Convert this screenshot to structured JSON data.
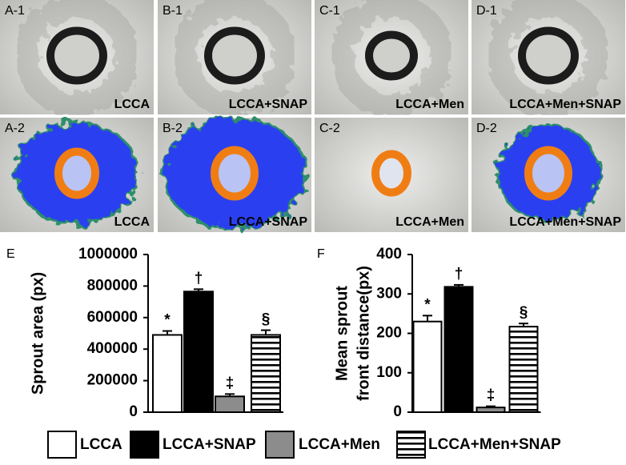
{
  "panels": [
    {
      "id": "A-1",
      "label": "LCCA"
    },
    {
      "id": "B-1",
      "label": "LCCA+SNAP"
    },
    {
      "id": "C-1",
      "label": "LCCA+Men"
    },
    {
      "id": "D-1",
      "label": "LCCA+Men+SNAP"
    },
    {
      "id": "A-2",
      "label": "LCCA"
    },
    {
      "id": "B-2",
      "label": "LCCA+SNAP"
    },
    {
      "id": "C-2",
      "label": "LCCA+Men"
    },
    {
      "id": "D-2",
      "label": "LCCA+Men+SNAP"
    }
  ],
  "chart_data": [
    {
      "type": "bar",
      "panel": "E",
      "ylabel": [
        "Sprout area (px)"
      ],
      "values": [
        490000,
        765000,
        100000,
        490000
      ],
      "errors": [
        25000,
        15000,
        15000,
        30000
      ],
      "annotations": [
        "*",
        "†",
        "‡",
        "§"
      ],
      "ylim": [
        0,
        1000000
      ],
      "yticks": [
        0,
        200000,
        400000,
        600000,
        800000,
        1000000
      ]
    },
    {
      "type": "bar",
      "panel": "F",
      "ylabel": [
        "Mean sprout",
        "front distance(px)"
      ],
      "values": [
        230,
        318,
        12,
        217
      ],
      "errors": [
        15,
        5,
        3,
        8
      ],
      "annotations": [
        "*",
        "†",
        "‡",
        "§"
      ],
      "ylim": [
        0,
        400
      ],
      "yticks": [
        0,
        100,
        200,
        300,
        400
      ]
    }
  ],
  "legend": [
    {
      "name": "LCCA",
      "fill": "white"
    },
    {
      "name": "LCCA+SNAP",
      "fill": "black"
    },
    {
      "name": "LCCA+Men",
      "fill": "gray"
    },
    {
      "name": "LCCA+Men+SNAP",
      "fill": "stripes"
    }
  ]
}
